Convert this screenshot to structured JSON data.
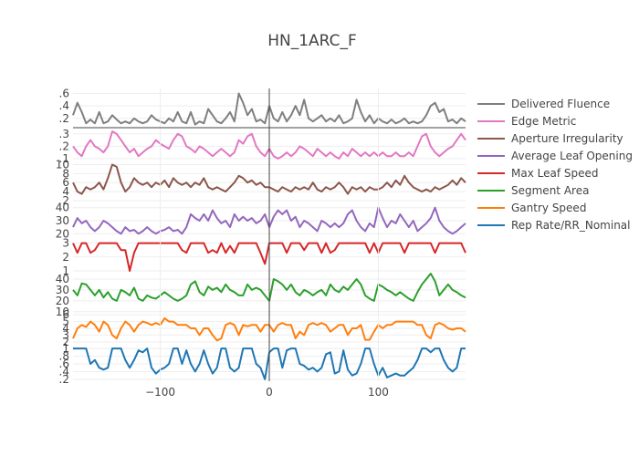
{
  "chart_data": {
    "type": "line",
    "title": "HN_1ARC_F",
    "xlabel": "",
    "xlim": [
      -180,
      180
    ],
    "xticks": [
      -100,
      0,
      100
    ],
    "xtick_labels": [
      "−100",
      "0",
      "100"
    ],
    "grid": true,
    "legend_position": "right",
    "x": [
      -180,
      -176,
      -172,
      -168,
      -164,
      -160,
      -156,
      -152,
      -148,
      -144,
      -140,
      -136,
      -132,
      -128,
      -124,
      -120,
      -116,
      -112,
      -108,
      -104,
      -100,
      -96,
      -92,
      -88,
      -84,
      -80,
      -76,
      -72,
      -68,
      -64,
      -60,
      -56,
      -52,
      -48,
      -44,
      -40,
      -36,
      -32,
      -28,
      -24,
      -20,
      -16,
      -12,
      -8,
      -4,
      0,
      4,
      8,
      12,
      16,
      20,
      24,
      28,
      32,
      36,
      40,
      44,
      48,
      52,
      56,
      60,
      64,
      68,
      72,
      76,
      80,
      84,
      88,
      92,
      96,
      100,
      104,
      108,
      112,
      116,
      120,
      124,
      128,
      132,
      136,
      140,
      144,
      148,
      152,
      156,
      160,
      164,
      168,
      172,
      176,
      180
    ],
    "series": [
      {
        "name": "Delivered Fluence",
        "color": "#7f7f7f",
        "yticks": [
          0.2,
          0.4,
          0.6
        ],
        "ylim": [
          0.05,
          0.68
        ],
        "values": [
          0.25,
          0.45,
          0.3,
          0.12,
          0.18,
          0.12,
          0.3,
          0.12,
          0.15,
          0.25,
          0.18,
          0.12,
          0.15,
          0.12,
          0.2,
          0.15,
          0.12,
          0.15,
          0.25,
          0.18,
          0.15,
          0.12,
          0.2,
          0.15,
          0.3,
          0.15,
          0.12,
          0.3,
          0.1,
          0.15,
          0.12,
          0.35,
          0.25,
          0.15,
          0.12,
          0.2,
          0.3,
          0.15,
          0.6,
          0.45,
          0.25,
          0.35,
          0.15,
          0.18,
          0.12,
          0.4,
          0.2,
          0.15,
          0.3,
          0.15,
          0.25,
          0.4,
          0.25,
          0.5,
          0.2,
          0.15,
          0.2,
          0.25,
          0.15,
          0.2,
          0.15,
          0.25,
          0.12,
          0.15,
          0.2,
          0.5,
          0.3,
          0.15,
          0.25,
          0.12,
          0.2,
          0.15,
          0.12,
          0.18,
          0.12,
          0.15,
          0.2,
          0.12,
          0.15,
          0.12,
          0.15,
          0.25,
          0.4,
          0.45,
          0.3,
          0.35,
          0.15,
          0.18,
          0.12,
          0.2,
          0.15
        ]
      },
      {
        "name": "Edge Metric",
        "color": "#e377c2",
        "yticks": [
          0.1,
          0.2,
          0.3
        ],
        "ylim": [
          0.07,
          0.35
        ],
        "values": [
          0.2,
          0.15,
          0.12,
          0.2,
          0.25,
          0.2,
          0.18,
          0.15,
          0.2,
          0.32,
          0.3,
          0.25,
          0.2,
          0.15,
          0.18,
          0.12,
          0.15,
          0.18,
          0.2,
          0.25,
          0.22,
          0.2,
          0.18,
          0.25,
          0.3,
          0.28,
          0.2,
          0.18,
          0.15,
          0.2,
          0.18,
          0.15,
          0.12,
          0.15,
          0.18,
          0.15,
          0.12,
          0.15,
          0.25,
          0.22,
          0.28,
          0.3,
          0.2,
          0.15,
          0.12,
          0.18,
          0.12,
          0.1,
          0.12,
          0.15,
          0.12,
          0.15,
          0.2,
          0.18,
          0.15,
          0.12,
          0.18,
          0.15,
          0.12,
          0.15,
          0.12,
          0.1,
          0.15,
          0.12,
          0.18,
          0.15,
          0.12,
          0.15,
          0.12,
          0.15,
          0.12,
          0.15,
          0.12,
          0.12,
          0.15,
          0.12,
          0.12,
          0.15,
          0.12,
          0.2,
          0.28,
          0.3,
          0.2,
          0.15,
          0.12,
          0.15,
          0.18,
          0.2,
          0.25,
          0.3,
          0.25
        ]
      },
      {
        "name": "Aperture Irregularity",
        "color": "#8c564b",
        "yticks": [
          2,
          4,
          6,
          8,
          10
        ],
        "ylim": [
          1.6,
          10.5
        ],
        "values": [
          6,
          4,
          3.5,
          5,
          4.5,
          5,
          6,
          4.5,
          7,
          10,
          9.5,
          6,
          4,
          5,
          7,
          6,
          5.5,
          6,
          5,
          6,
          5.5,
          6.5,
          5,
          7,
          6,
          5.5,
          6,
          5,
          6,
          5.5,
          7,
          5,
          4.5,
          5,
          4.5,
          4,
          5,
          6,
          7.5,
          7,
          6,
          6.5,
          5.5,
          6,
          5,
          5,
          4.5,
          4,
          5,
          4.5,
          4,
          5,
          4.5,
          5,
          4.5,
          6,
          4.5,
          4,
          5,
          4.5,
          5,
          6,
          5,
          3.5,
          5,
          4.5,
          5,
          4,
          5,
          4.5,
          4.5,
          5,
          6,
          5,
          6.5,
          5.5,
          7.5,
          6,
          5,
          4.5,
          4,
          4.5,
          4,
          5,
          4.5,
          5,
          5.5,
          6.5,
          5.5,
          7,
          6
        ]
      },
      {
        "name": "Average Leaf Opening",
        "color": "#9467bd",
        "yticks": [
          20,
          30,
          40
        ],
        "ylim": [
          16,
          44
        ],
        "values": [
          25,
          32,
          28,
          30,
          25,
          22,
          25,
          30,
          28,
          25,
          22,
          20,
          25,
          22,
          23,
          20,
          22,
          25,
          22,
          20,
          22,
          23,
          25,
          22,
          23,
          20,
          25,
          35,
          32,
          30,
          35,
          30,
          38,
          32,
          28,
          30,
          25,
          35,
          30,
          33,
          30,
          32,
          28,
          30,
          35,
          25,
          33,
          38,
          35,
          38,
          30,
          33,
          25,
          30,
          28,
          25,
          22,
          30,
          28,
          25,
          28,
          25,
          28,
          35,
          38,
          30,
          25,
          22,
          28,
          25,
          40,
          32,
          25,
          30,
          28,
          35,
          30,
          25,
          30,
          22,
          25,
          28,
          32,
          40,
          30,
          25,
          22,
          20,
          22,
          25,
          28
        ]
      },
      {
        "name": "Max Leaf Speed",
        "color": "#d62728",
        "yticks": [
          1,
          2,
          3
        ],
        "ylim": [
          0.8,
          3.3
        ],
        "values": [
          3,
          2.3,
          3,
          3,
          2.3,
          2.5,
          3,
          3,
          3,
          3,
          3,
          2.5,
          2.5,
          1,
          2.3,
          3,
          3,
          3,
          3,
          3,
          3,
          3,
          3,
          3,
          3,
          2.5,
          2.3,
          3,
          3,
          3,
          3,
          2.3,
          2.5,
          2.3,
          3,
          2.3,
          2.8,
          2.3,
          3,
          3,
          3,
          3,
          3,
          2.3,
          1.5,
          3,
          3,
          3,
          3,
          2.3,
          3,
          3,
          3,
          2.5,
          3,
          3,
          3,
          2.3,
          3,
          2.3,
          2.5,
          3,
          3,
          3,
          3,
          3,
          3,
          3,
          2.3,
          3,
          2.3,
          3,
          3,
          3,
          3,
          3,
          2.3,
          3,
          3,
          3,
          3,
          3,
          3,
          2.3,
          3,
          3,
          3,
          3,
          3,
          3,
          2.3
        ]
      },
      {
        "name": "Segment Area",
        "color": "#2ca02c",
        "yticks": [
          10,
          20,
          30,
          40
        ],
        "ylim": [
          9,
          45
        ],
        "values": [
          30,
          25,
          36,
          35,
          30,
          25,
          30,
          23,
          28,
          22,
          20,
          30,
          28,
          25,
          32,
          22,
          20,
          25,
          23,
          22,
          25,
          28,
          25,
          22,
          20,
          22,
          25,
          35,
          38,
          28,
          25,
          33,
          30,
          32,
          28,
          35,
          30,
          28,
          25,
          25,
          35,
          30,
          32,
          30,
          25,
          20,
          40,
          38,
          35,
          30,
          35,
          28,
          25,
          30,
          28,
          25,
          28,
          30,
          25,
          35,
          30,
          28,
          33,
          30,
          35,
          40,
          35,
          25,
          22,
          20,
          35,
          33,
          30,
          28,
          25,
          28,
          25,
          22,
          20,
          28,
          35,
          40,
          45,
          38,
          25,
          30,
          35,
          30,
          28,
          25,
          23
        ]
      },
      {
        "name": "Gantry Speed",
        "color": "#ff7f0e",
        "yticks": [
          1,
          2,
          3,
          4,
          5,
          6
        ],
        "ylim": [
          1.3,
          6.3
        ],
        "values": [
          2.5,
          4,
          4.5,
          4.2,
          5,
          4.5,
          3.5,
          5,
          4.5,
          3,
          2.5,
          4,
          5,
          4.5,
          3.5,
          4.5,
          5,
          4.8,
          4.5,
          4.8,
          4.5,
          5.5,
          5,
          5,
          4.5,
          4.5,
          4.5,
          4,
          4,
          3,
          4,
          4,
          3,
          2.2,
          2.5,
          4.5,
          4.8,
          4.5,
          3,
          4.5,
          4.3,
          4.5,
          4.5,
          3.5,
          4.5,
          4.5,
          3.5,
          4.5,
          4.8,
          4.5,
          4.5,
          2.5,
          3.5,
          3,
          4.5,
          4.8,
          4.5,
          4.8,
          4.5,
          3.5,
          4,
          4.5,
          4.5,
          3,
          4,
          4,
          4.5,
          2.3,
          2.3,
          3.5,
          4.5,
          4,
          4.5,
          4.5,
          5,
          5,
          5,
          5,
          5,
          4.5,
          4.5,
          3,
          2.5,
          4.5,
          4.8,
          4.5,
          4,
          3.8,
          4,
          4,
          3.5
        ]
      },
      {
        "name": "Rep Rate/RR_Nominal",
        "color": "#1f77b4",
        "yticks": [
          0.2,
          0.4,
          0.6,
          0.8,
          1
        ],
        "ylim": [
          0.15,
          1.05
        ],
        "values": [
          1,
          1,
          1,
          1,
          0.6,
          0.7,
          0.5,
          0.45,
          0.5,
          1,
          1,
          1,
          0.7,
          0.5,
          0.7,
          0.95,
          0.9,
          1,
          0.5,
          0.35,
          0.45,
          0.5,
          0.6,
          1,
          1,
          0.6,
          0.95,
          0.6,
          0.4,
          0.6,
          0.95,
          0.6,
          0.35,
          0.5,
          1,
          1,
          0.5,
          0.4,
          0.5,
          1,
          1,
          1,
          0.6,
          0.5,
          0.2,
          0.9,
          1,
          1,
          0.5,
          0.95,
          1,
          1,
          0.6,
          0.55,
          0.45,
          0.5,
          0.4,
          0.5,
          0.85,
          0.9,
          0.35,
          0.4,
          0.95,
          0.45,
          0.3,
          0.35,
          0.6,
          1,
          1,
          0.6,
          0.3,
          0.5,
          0.25,
          0.3,
          0.35,
          0.3,
          0.3,
          0.4,
          0.5,
          0.7,
          1,
          1,
          0.9,
          1,
          1,
          0.7,
          0.5,
          0.4,
          0.5,
          1,
          1
        ]
      }
    ]
  }
}
